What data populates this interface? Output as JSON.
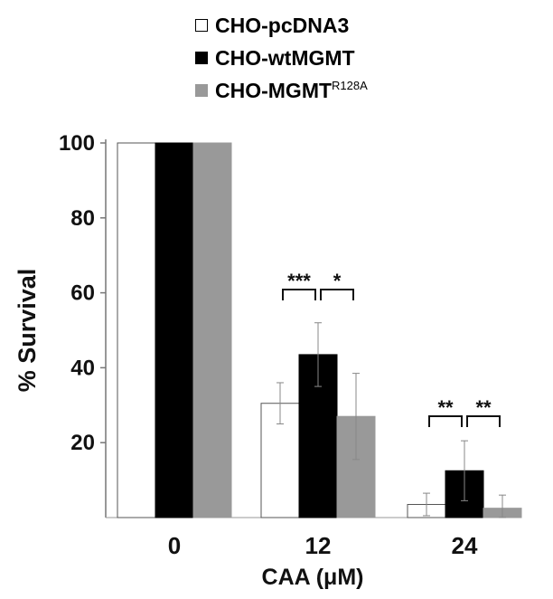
{
  "chart_data": {
    "type": "bar",
    "categories": [
      "0",
      "12",
      "24"
    ],
    "series": [
      {
        "name": "CHO-pcDNA3",
        "values": [
          100,
          30.5,
          3.5
        ],
        "errors": [
          0,
          5.5,
          3.0
        ],
        "color": "#ffffff"
      },
      {
        "name": "CHO-wtMGMT",
        "values": [
          100,
          43.5,
          12.5
        ],
        "errors": [
          0,
          8.5,
          8.0
        ],
        "color": "#000000"
      },
      {
        "name": "CHO-MGMT",
        "name_sup": "R128A",
        "values": [
          100,
          27,
          2.5
        ],
        "errors": [
          0,
          11.5,
          3.5
        ],
        "color": "#999999"
      }
    ],
    "xlabel": "CAA (μM)",
    "ylabel": "% Survival",
    "ylim": [
      0,
      100
    ],
    "yticks": [
      20,
      40,
      60,
      80,
      100
    ],
    "grid": false,
    "legend_position": "top",
    "significance": [
      {
        "category": "12",
        "between": [
          0,
          1
        ],
        "label": "***"
      },
      {
        "category": "12",
        "between": [
          1,
          2
        ],
        "label": "*"
      },
      {
        "category": "24",
        "between": [
          0,
          1
        ],
        "label": "**"
      },
      {
        "category": "24",
        "between": [
          1,
          2
        ],
        "label": "**"
      }
    ]
  }
}
